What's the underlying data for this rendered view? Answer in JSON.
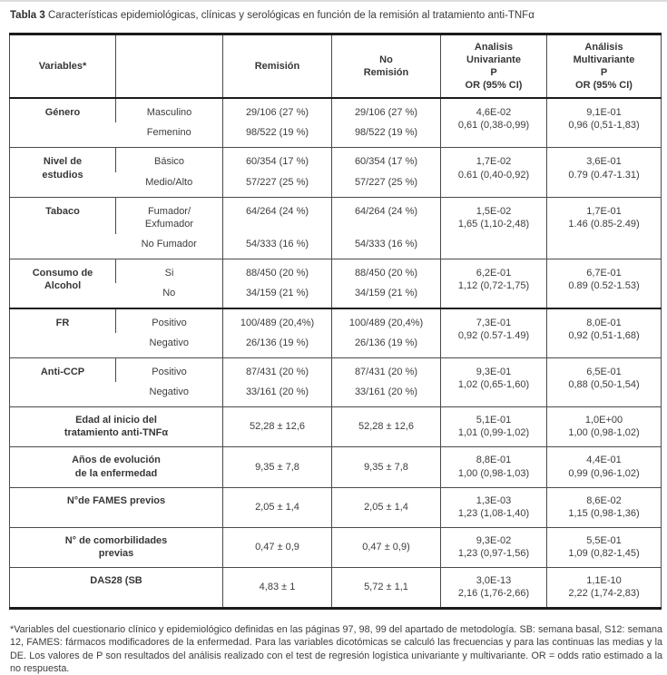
{
  "title": {
    "bold": "Tabla 3",
    "text": " Características epidemiológicas, clínicas y serológicas en función de la remisión al tratamiento anti-TNFα"
  },
  "header": {
    "variables": "Variables*",
    "blank": "",
    "remision": "Remisión",
    "no_remision": "No\nRemisión",
    "univariante": "Analisis\nUnivariante\nP\nOR (95% CI)",
    "multivariante": "Análisis\nMultivariante\nP\nOR (95% CI)"
  },
  "sections": [
    {
      "name": "Género",
      "rows": [
        {
          "label": "Masculino",
          "remision": "29/106 (27 %)",
          "no_remision": "29/106 (27 %)"
        },
        {
          "label": "Femenino",
          "remision": "98/522 (19 %)",
          "no_remision": "98/522 (19 %)"
        }
      ],
      "p_univ": "4,6E-02\n0,61 (0,38-0,99)",
      "p_multi": "9,1E-01\n0,96 (0,51-1,83)"
    },
    {
      "name": "Nivel de\nestudios",
      "rows": [
        {
          "label": "Básico",
          "remision": "60/354 (17 %)",
          "no_remision": "60/354 (17 %)"
        },
        {
          "label": "Medio/Alto",
          "remision": "57/227 (25 %)",
          "no_remision": "57/227 (25 %)"
        }
      ],
      "p_univ": "1,7E-02\n0.61 (0,40-0,92)",
      "p_multi": "3,6E-01\n0.79 (0.47-1.31)"
    },
    {
      "name": "Tabaco",
      "rows": [
        {
          "label": "Fumador/\nExfumador",
          "remision": "64/264 (24 %)",
          "no_remision": "64/264 (24 %)"
        },
        {
          "label": "No Fumador",
          "remision": "54/333 (16 %)",
          "no_remision": "54/333 (16 %)"
        }
      ],
      "p_univ": "1,5E-02\n1,65 (1,10-2,48)",
      "p_multi": "1,7E-01\n1.46 (0.85-2.49)"
    },
    {
      "name": "Consumo de Alcohol",
      "rows": [
        {
          "label": "Si",
          "remision": "88/450 (20 %)",
          "no_remision": "88/450 (20 %)"
        },
        {
          "label": "No",
          "remision": "34/159 (21 %)",
          "no_remision": "34/159 (21 %)"
        }
      ],
      "p_univ": "6,2E-01\n1,12 (0,72-1,75)",
      "p_multi": "6,7E-01\n0.89 (0.52-1.53)"
    },
    {
      "name": "FR",
      "rows": [
        {
          "label": "Positivo",
          "remision": "100/489 (20,4%)",
          "no_remision": "100/489 (20,4%)"
        },
        {
          "label": "Negativo",
          "remision": "26/136 (19 %)",
          "no_remision": "26/136 (19 %)"
        }
      ],
      "p_univ": "7,3E-01\n0,92 (0.57-1.49)",
      "p_multi": "8,0E-01\n0,92 (0,51-1,68)"
    },
    {
      "name": "Anti-CCP",
      "rows": [
        {
          "label": "Positivo",
          "remision": "87/431 (20 %)",
          "no_remision": "87/431 (20 %)"
        },
        {
          "label": "Negativo",
          "remision": "33/161 (20 %)",
          "no_remision": "33/161 (20 %)"
        }
      ],
      "p_univ": "9,3E-01\n1,02 (0,65-1,60)",
      "p_multi": "6,5E-01\n0,88 (0,50-1,54)"
    }
  ],
  "rows": [
    {
      "name": "Edad al inicio del\ntratamiento anti-TNFα",
      "remision": "52,28 ± 12,6",
      "no_remision": "52,28 ± 12,6",
      "p_univ": "5,1E-01\n1,01 (0,99-1,02)",
      "p_multi": "1,0E+00\n1,00 (0,98-1,02)"
    },
    {
      "name": "Años de evolución\nde la enfermedad",
      "remision": "9,35 ± 7,8",
      "no_remision": "9,35 ± 7,8",
      "p_univ": "8,8E-01\n1,00 (0,98-1,03)",
      "p_multi": "4,4E-01\n0,99 (0,96-1,02)"
    },
    {
      "name": "N°de FAMES previos",
      "remision": "2,05 ± 1,4",
      "no_remision": "2,05 ± 1,4",
      "p_univ": "1,3E-03\n1,23 (1,08-1,40)",
      "p_multi": "8,6E-02\n1,15 (0,98-1,36)"
    },
    {
      "name": "N° de comorbilidades\nprevias",
      "remision": "0,47 ± 0,9",
      "no_remision": "0,47 ± 0,9)",
      "p_univ": "9,3E-02\n1,23 (0,97-1,56)",
      "p_multi": "5,5E-01\n1,09 (0,82-1,45)"
    },
    {
      "name": "DAS28 (SB",
      "remision": "4,83 ± 1",
      "no_remision": "5,72 ± 1,1",
      "p_univ": "3,0E-13\n2,16 (1,76-2,66)",
      "p_multi": "1,1E-10\n2,22 (1,74-2,83)"
    }
  ],
  "footnote": "*Variables del cuestionario clínico y epidemiológico definidas en las páginas 97, 98, 99 del apartado de metodología. SB: semana basal, S12: semana 12, FAMES: fármacos modificadores de la enfermedad. Para las variables dicotómicas se calculó las frecuencias y para las continuas las medias y la DE. Los valores de P son resultados del análisis realizado con el test de regresión logística univariante y multivariante. OR = odds ratio estimado a la no respuesta."
}
